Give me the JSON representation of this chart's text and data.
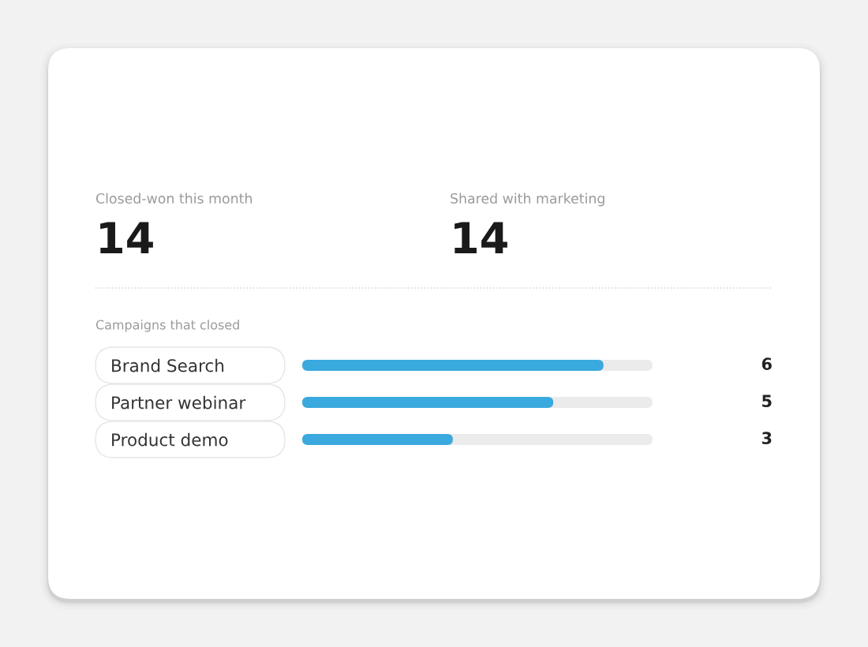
{
  "chart_data": [
    {
      "type": "other",
      "categories": [
        "Closed-won this month",
        "Shared with marketing"
      ],
      "values": [
        14,
        14
      ],
      "data_labels": true
    },
    {
      "type": "bar",
      "orientation": "horizontal",
      "title": "Campaigns that closed",
      "categories": [
        "Brand Search",
        "Partner webinar",
        "Product demo"
      ],
      "values": [
        6,
        5,
        3
      ],
      "color": "#3aa9dd",
      "data_labels": true,
      "tick_labels": "y"
    }
  ]
}
